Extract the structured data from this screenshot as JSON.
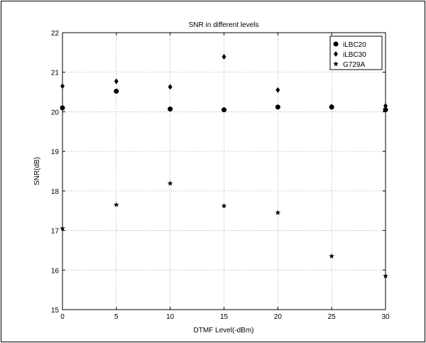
{
  "chart_data": {
    "type": "scatter",
    "title": "SNR in different levels",
    "xlabel": "DTMF Level(-dBm)",
    "ylabel": "SNR(dB)",
    "xlim": [
      0,
      30
    ],
    "ylim": [
      15,
      22
    ],
    "xticks": [
      "0",
      "5",
      "10",
      "15",
      "20",
      "25",
      "30"
    ],
    "yticks": [
      "15",
      "16",
      "17",
      "18",
      "19",
      "20",
      "21",
      "22"
    ],
    "grid": true,
    "legend_position": "top-right",
    "x": [
      0,
      5,
      10,
      15,
      20,
      25,
      30
    ],
    "series": [
      {
        "name": "iLBC20",
        "marker": "circle",
        "values": [
          20.1,
          20.52,
          20.07,
          20.05,
          20.12,
          20.12,
          20.05
        ]
      },
      {
        "name": "iLBC30",
        "marker": "diamond",
        "values": [
          20.65,
          20.77,
          20.63,
          21.39,
          20.55,
          20.13,
          20.15
        ]
      },
      {
        "name": "G729A",
        "marker": "star",
        "values": [
          17.05,
          17.65,
          18.19,
          17.62,
          17.45,
          16.35,
          15.85
        ]
      }
    ]
  }
}
